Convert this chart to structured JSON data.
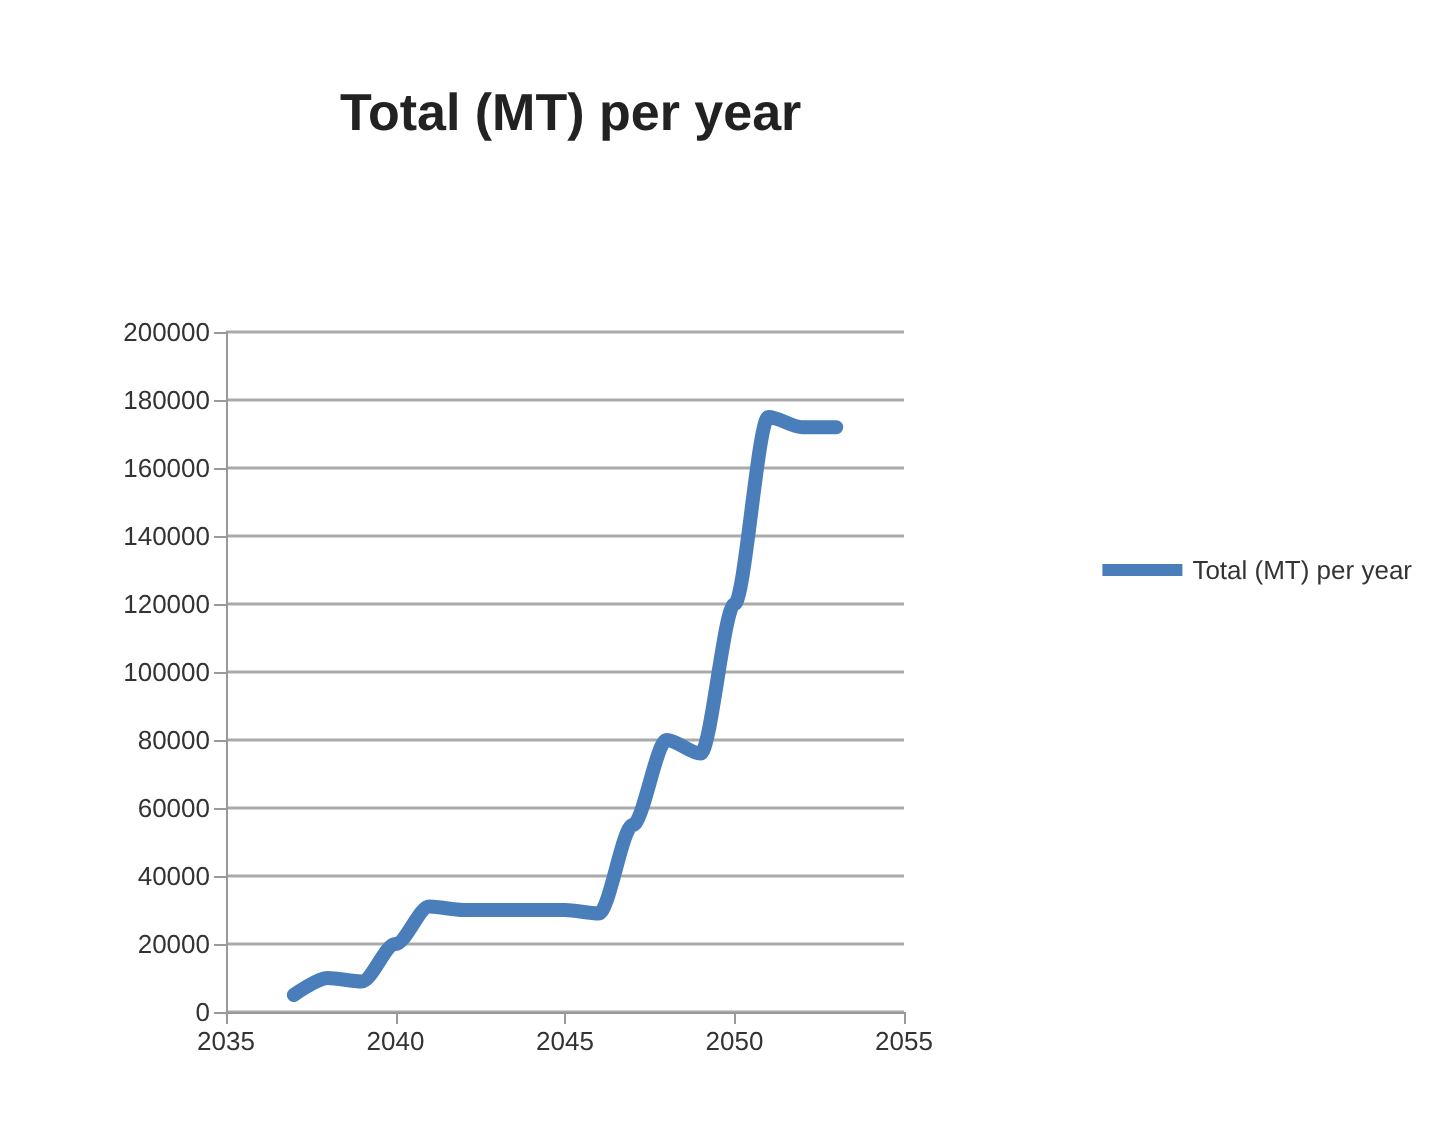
{
  "chart_data": {
    "type": "line",
    "title": "Total (MT) per year",
    "x": [
      2037,
      2038,
      2039,
      2040,
      2041,
      2042,
      2043,
      2044,
      2045,
      2046,
      2047,
      2048,
      2049,
      2050,
      2051,
      2052,
      2053
    ],
    "series": [
      {
        "name": "Total (MT) per year",
        "color": "#4a7ebb",
        "values": [
          5000,
          10000,
          9000,
          20000,
          31000,
          30000,
          30000,
          30000,
          30000,
          29000,
          55000,
          80000,
          76000,
          120000,
          175000,
          172000,
          172000
        ]
      }
    ],
    "xlim": [
      2035,
      2055
    ],
    "xticks": [
      2035,
      2040,
      2045,
      2050,
      2055
    ],
    "ylim": [
      0,
      200000
    ],
    "yticks": [
      0,
      20000,
      40000,
      60000,
      80000,
      100000,
      120000,
      140000,
      160000,
      180000,
      200000
    ],
    "grid": "y",
    "legend": "right",
    "line_style": "solid"
  }
}
